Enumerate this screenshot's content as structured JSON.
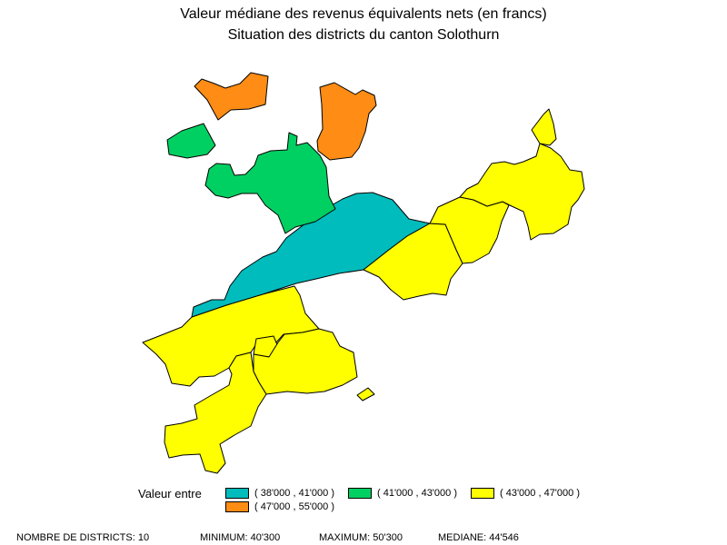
{
  "title_line1": "Valeur médiane des revenus équivalents nets (en francs)",
  "title_line2": "Situation des districts du canton Solothurn",
  "legend": {
    "label": "Valeur entre",
    "classes": [
      {
        "range": "( 38'000 , 41'000 )",
        "color": "#00BCBC"
      },
      {
        "range": "( 41'000 , 43'000 )",
        "color": "#00D062"
      },
      {
        "range": "( 43'000 , 47'000 )",
        "color": "#FFFF00"
      },
      {
        "range": "( 47'000 , 55'000 )",
        "color": "#FF8C14"
      }
    ]
  },
  "map_regions": [
    {
      "name": "district-south-west",
      "class": 2
    },
    {
      "name": "district-south-west-enclave",
      "class": 2
    },
    {
      "name": "district-south",
      "class": 2
    },
    {
      "name": "district-south-small-enclave",
      "class": 2
    },
    {
      "name": "district-south-tail",
      "class": 2
    },
    {
      "name": "district-center",
      "class": 0
    },
    {
      "name": "district-north-center",
      "class": 1
    },
    {
      "name": "district-north-west-enclave",
      "class": 1
    },
    {
      "name": "district-north-west-top",
      "class": 3
    },
    {
      "name": "district-north",
      "class": 3
    },
    {
      "name": "district-east-center",
      "class": 2
    },
    {
      "name": "district-east-middle",
      "class": 2
    },
    {
      "name": "district-north-east",
      "class": 2
    },
    {
      "name": "district-north-east-tip",
      "class": 2
    }
  ],
  "footer": {
    "count": "NOMBRE DE DISTRICTS: 10",
    "minimum": "MINIMUM: 40'300",
    "maximum": "MAXIMUM: 50'300",
    "median": "MEDIANE: 44'546"
  }
}
